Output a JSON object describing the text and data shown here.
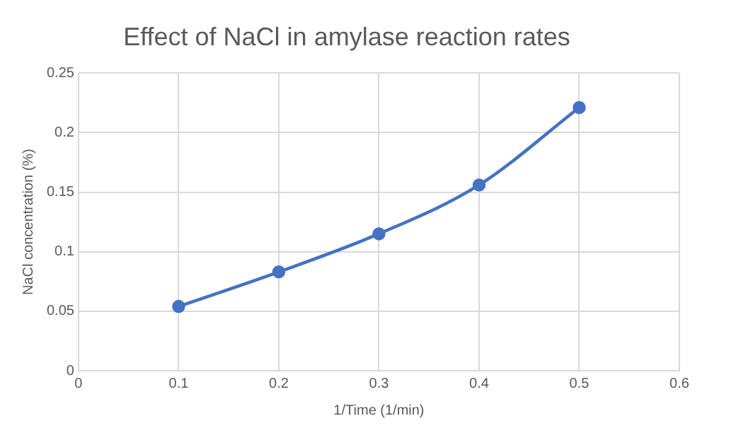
{
  "chart_data": {
    "type": "line",
    "title": "Effect of NaCl in amylase reaction rates",
    "xlabel": "1/Time (1/min)",
    "ylabel": "NaCl concentration (%)",
    "x": [
      0.1,
      0.2,
      0.3,
      0.4,
      0.5
    ],
    "series": [
      {
        "color": "#4472c4",
        "values": [
          0.054,
          0.083,
          0.115,
          0.156,
          0.221
        ]
      }
    ],
    "xlim": [
      0,
      0.6
    ],
    "xticks": [
      0,
      0.1,
      0.2,
      0.3,
      0.4,
      0.5,
      0.6
    ],
    "ylim": [
      0,
      0.25
    ],
    "yticks": [
      0,
      0.05,
      0.1,
      0.15,
      0.2,
      0.25
    ],
    "grid": true,
    "legend": false,
    "marker": "circle",
    "line_style": "solid"
  }
}
